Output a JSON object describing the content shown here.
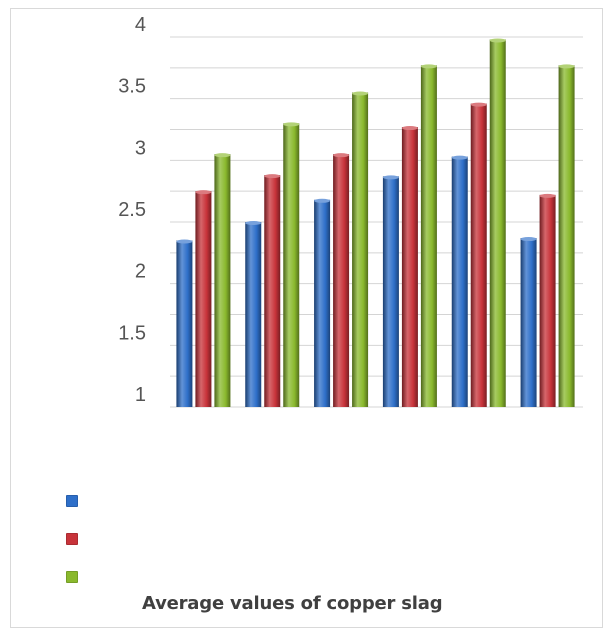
{
  "chart_data": {
    "type": "bar",
    "categories": [
      "",
      "",
      "",
      "",
      "",
      ""
    ],
    "series": [
      {
        "color": "#2e6fc9",
        "values": [
          2.35,
          2.5,
          2.68,
          2.87,
          3.03,
          2.37
        ]
      },
      {
        "color": "#c8333a",
        "values": [
          2.75,
          2.88,
          3.05,
          3.27,
          3.46,
          2.72
        ]
      },
      {
        "color": "#8ab92d",
        "values": [
          3.05,
          3.3,
          3.55,
          3.77,
          3.98,
          3.77
        ]
      }
    ],
    "yticks": [
      "1",
      "1.5",
      "2",
      "2.5",
      "3",
      "3.5",
      "4"
    ],
    "ylim": [
      1,
      4
    ],
    "grid": true,
    "legend": "bottom-left",
    "caption": "Average values of copper  slag"
  }
}
